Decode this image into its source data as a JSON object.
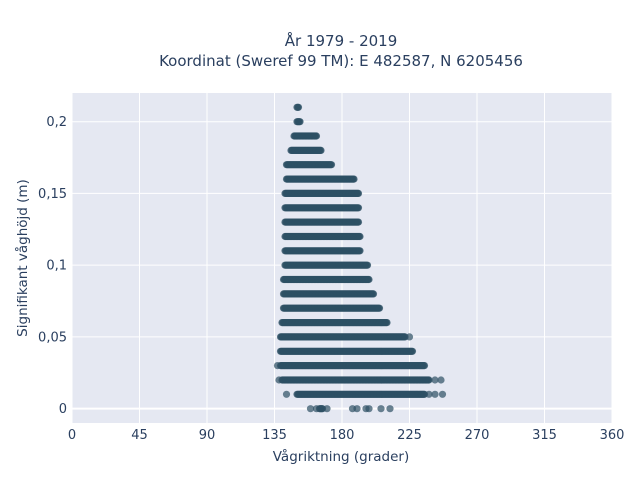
{
  "chart_data": {
    "type": "scatter",
    "title_line1": "År 1979 - 2019",
    "title_line2": "Koordinat (Sweref 99 TM): E 482587, N 6205456",
    "xlabel": "Vågriktning (grader)",
    "ylabel": "Signifikant våghöjd (m)",
    "xlim": [
      0,
      360
    ],
    "ylim": [
      -0.01,
      0.22
    ],
    "x_ticks": [
      0,
      45,
      90,
      135,
      180,
      225,
      270,
      315,
      360
    ],
    "x_tick_labels": [
      "0",
      "45",
      "90",
      "135",
      "180",
      "225",
      "270",
      "315",
      "360"
    ],
    "y_ticks": [
      0,
      0.05,
      0.1,
      0.15,
      0.2
    ],
    "y_tick_labels": [
      "0",
      "0,05",
      "0,1",
      "0,15",
      "0,2"
    ],
    "grid": true,
    "legend": "none",
    "marker_color": "#2e5064",
    "background_color": "#e5e8f2",
    "series": [
      {
        "bands": [
          {
            "y": 0.0,
            "x_min": 165,
            "x_max": 167,
            "extra_x": [
              159,
              163,
              170,
              187,
              190,
              196,
              198,
              206,
              212
            ]
          },
          {
            "y": 0.01,
            "x_min": 150,
            "x_max": 235,
            "extra_x": [
              143,
              238,
              242,
              247
            ]
          },
          {
            "y": 0.02,
            "x_min": 140,
            "x_max": 238,
            "extra_x": [
              138,
              242,
              246
            ]
          },
          {
            "y": 0.03,
            "x_min": 139,
            "x_max": 235,
            "extra_x": [
              137
            ]
          },
          {
            "y": 0.04,
            "x_min": 139,
            "x_max": 227
          },
          {
            "y": 0.05,
            "x_min": 139,
            "x_max": 222,
            "extra_x": [
              225
            ]
          },
          {
            "y": 0.06,
            "x_min": 140,
            "x_max": 210
          },
          {
            "y": 0.07,
            "x_min": 141,
            "x_max": 205
          },
          {
            "y": 0.08,
            "x_min": 141,
            "x_max": 201
          },
          {
            "y": 0.09,
            "x_min": 141,
            "x_max": 198
          },
          {
            "y": 0.1,
            "x_min": 142,
            "x_max": 197
          },
          {
            "y": 0.11,
            "x_min": 142,
            "x_max": 192
          },
          {
            "y": 0.12,
            "x_min": 142,
            "x_max": 192
          },
          {
            "y": 0.13,
            "x_min": 142,
            "x_max": 191
          },
          {
            "y": 0.14,
            "x_min": 142,
            "x_max": 191
          },
          {
            "y": 0.15,
            "x_min": 142,
            "x_max": 191
          },
          {
            "y": 0.16,
            "x_min": 143,
            "x_max": 188
          },
          {
            "y": 0.17,
            "x_min": 143,
            "x_max": 173
          },
          {
            "y": 0.18,
            "x_min": 146,
            "x_max": 166
          },
          {
            "y": 0.19,
            "x_min": 148,
            "x_max": 163
          },
          {
            "y": 0.2,
            "x_min": 150,
            "x_max": 152
          },
          {
            "y": 0.21,
            "x_min": 150,
            "x_max": 151
          }
        ]
      }
    ]
  }
}
